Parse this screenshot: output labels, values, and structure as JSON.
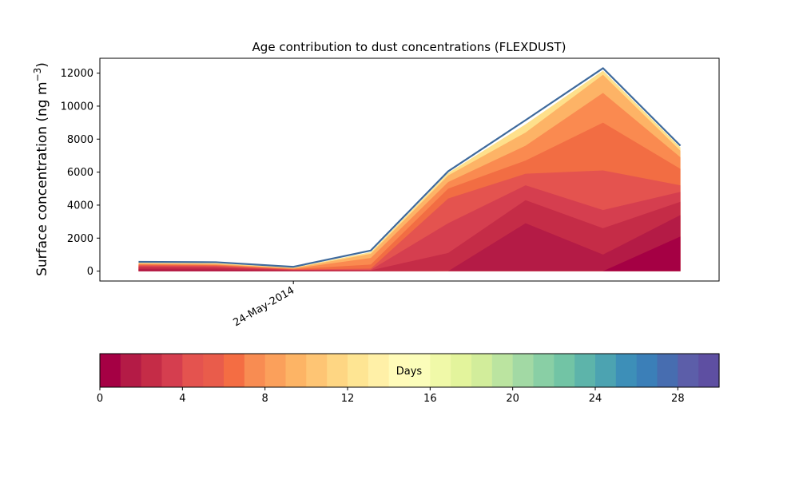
{
  "chart_data": {
    "type": "area",
    "title": "Age contribution to dust concentrations (FLEXDUST)",
    "ylabel": "Surface concentration (ng m",
    "ylabel_sup": "−3",
    "ylabel_close": ")",
    "ylim": [
      -600,
      12900
    ],
    "yticks": [
      0,
      2000,
      4000,
      6000,
      8000,
      10000,
      12000
    ],
    "ytick_labels": [
      "0",
      "2000",
      "4000",
      "6000",
      "8000",
      "10000",
      "12000"
    ],
    "x_dates": [
      "2014-05-22",
      "2014-05-23",
      "2014-05-24",
      "2014-05-25",
      "2014-05-26",
      "2014-05-27",
      "2014-05-28",
      "2014-05-29"
    ],
    "xlim": [
      "2014-05-21 12:00",
      "2014-05-29 12:00"
    ],
    "xtick_date": "2014-05-24",
    "xtick_label": "24-May-2014",
    "cumulative_layers": [
      [
        20,
        15,
        5,
        0,
        0,
        0,
        0,
        2100
      ],
      [
        120,
        100,
        25,
        30,
        0,
        2900,
        1000,
        3400
      ],
      [
        230,
        200,
        60,
        50,
        1100,
        4300,
        2600,
        4200
      ],
      [
        300,
        270,
        80,
        80,
        2900,
        5200,
        3700,
        4800
      ],
      [
        350,
        320,
        100,
        150,
        4400,
        5900,
        6100,
        5200
      ],
      [
        390,
        360,
        120,
        400,
        5000,
        6700,
        9000,
        6200
      ],
      [
        430,
        400,
        150,
        800,
        5400,
        7600,
        10800,
        6900
      ],
      [
        470,
        440,
        180,
        1050,
        5800,
        8400,
        11900,
        7300
      ],
      [
        510,
        480,
        210,
        1150,
        5950,
        8900,
        12150,
        7500
      ]
    ],
    "total": [
      560,
      540,
      260,
      1250,
      6050,
      9150,
      12300,
      7600
    ],
    "layer_colors": [
      "#a50044",
      "#b41b46",
      "#c52c47",
      "#d53e4f",
      "#e4534f",
      "#f26d43",
      "#fa8a50",
      "#fdb366",
      "#fee08b"
    ],
    "top_line_color": "#3f6a9c",
    "colorbar": {
      "label": "Days",
      "min": 0,
      "max": 30,
      "ticks": [
        0,
        4,
        8,
        12,
        16,
        20,
        24,
        28
      ],
      "tick_labels": [
        "0",
        "4",
        "8",
        "12",
        "16",
        "20",
        "24",
        "28"
      ],
      "colors": [
        "#a50044",
        "#b41b46",
        "#c52c47",
        "#d53e4f",
        "#e4534f",
        "#e95c4b",
        "#f46d43",
        "#f88c52",
        "#fba05b",
        "#fdb465",
        "#fec574",
        "#fed683",
        "#fee593",
        "#fff0a7",
        "#fffbb9",
        "#fbfdba",
        "#f0f9a8",
        "#e3f49c",
        "#d2ed9b",
        "#bbe4a0",
        "#a2d9a4",
        "#89cfa5",
        "#72c4a5",
        "#5db4aa",
        "#4ca3b1",
        "#3d8fb8",
        "#3b7fb8",
        "#476db0",
        "#5c5ea9",
        "#5e4fa2"
      ]
    }
  }
}
